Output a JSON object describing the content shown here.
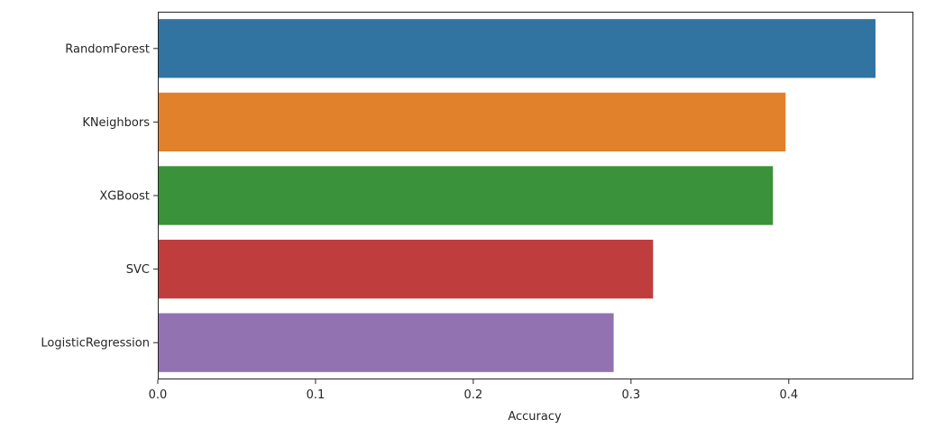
{
  "chart_data": {
    "type": "bar",
    "orientation": "horizontal",
    "title": "",
    "xlabel": "Accuracy",
    "ylabel": "",
    "xlim": [
      0,
      0.479
    ],
    "x_ticks": [
      0.0,
      0.1,
      0.2,
      0.3,
      0.4
    ],
    "x_tick_labels": [
      "0.0",
      "0.1",
      "0.2",
      "0.3",
      "0.4"
    ],
    "grid": false,
    "legend": "none",
    "categories": [
      "RandomForest",
      "KNeighbors",
      "XGBoost",
      "SVC",
      "LogisticRegression"
    ],
    "values": [
      0.455,
      0.398,
      0.39,
      0.314,
      0.289
    ],
    "colors": [
      "#3274a1",
      "#e1812c",
      "#3a923a",
      "#c03d3e",
      "#9372b2"
    ]
  }
}
